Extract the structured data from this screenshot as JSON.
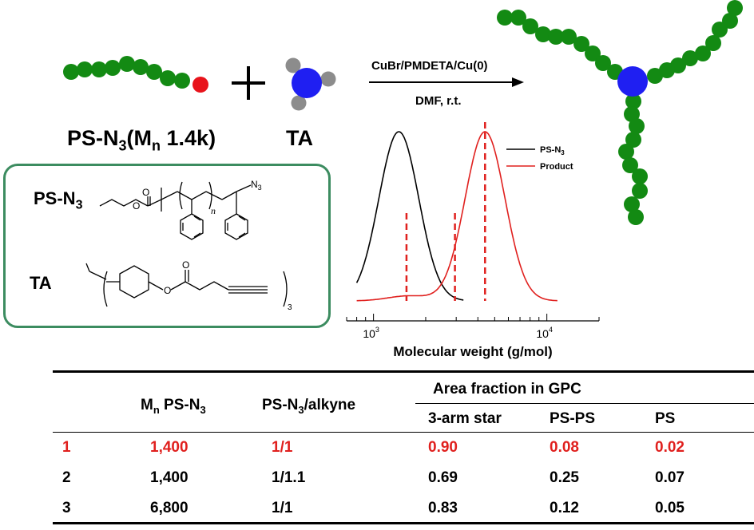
{
  "reaction": {
    "reagent1_label": "PS-N",
    "reagent1_sub": "3",
    "reagent1_mn_open": "(M",
    "reagent1_mn_sub": "n",
    "reagent1_mn_value": " 1.4k)",
    "plus": "+",
    "reagent2_label": "TA",
    "conditions_top": "CuBr/PMDETA/Cu(0)",
    "conditions_bottom": "DMF, r.t."
  },
  "structures": {
    "ps_label": "PS-N",
    "ps_sub": "3",
    "ps_n": "n",
    "ps_n3": "N",
    "ps_n3_sub": "3",
    "ps_o": "O",
    "ps_o2": "O",
    "ta_label": "TA",
    "ta_o": "O",
    "ta_o2": "O",
    "ta_sub": "3"
  },
  "colors": {
    "bead_green": "#138a13",
    "end_red": "#e8131b",
    "core_blue": "#1f1ff2",
    "arm_gray": "#8c8c8c",
    "box_border": "#3c8c60",
    "product_curve": "#e0201e",
    "highlight_red": "#e0201e"
  },
  "chart_data": {
    "type": "line",
    "title": "",
    "xlabel": "Molecular weight (g/mol)",
    "ylabel": "",
    "x_scale": "log",
    "xlim": [
      700,
      20000
    ],
    "x_ticks": [
      1000,
      10000
    ],
    "x_tick_labels": [
      {
        "base": "10",
        "exp": "3"
      },
      {
        "base": "10",
        "exp": "4"
      }
    ],
    "series": [
      {
        "name": "PS-N3",
        "color": "#000000",
        "peak_mw": 1400,
        "height": 1.0
      },
      {
        "name": "Product",
        "color": "#e0201e",
        "peak_mw": 4400,
        "height": 1.0,
        "shoulder_mw": 1600,
        "shoulder_height": 0.03
      }
    ],
    "dashed_lines_mw": [
      1550,
      2950,
      4400
    ],
    "legend_entries": [
      {
        "label": "PS-N",
        "sub": "3",
        "color": "#000000"
      },
      {
        "label": "Product",
        "sub": "",
        "color": "#e0201e"
      }
    ],
    "legend_position": "top-right"
  },
  "table": {
    "header_mn": "M",
    "header_mn_sub": "n",
    "header_mn_rest": " PS-N",
    "header_mn_sub2": "3",
    "header_ratio": "PS-N",
    "header_ratio_sub": "3",
    "header_ratio_rest": "/alkyne",
    "header_group": "Area fraction in GPC",
    "sub_headers": [
      "3-arm star",
      "PS-PS",
      "PS"
    ],
    "rows": [
      {
        "id": "1",
        "mn": "1,400",
        "ratio": "1/1",
        "star": "0.90",
        "psps": "0.08",
        "ps": "0.02"
      },
      {
        "id": "2",
        "mn": "1,400",
        "ratio": "1/1.1",
        "star": "0.69",
        "psps": "0.25",
        "ps": "0.07"
      },
      {
        "id": "3",
        "mn": "6,800",
        "ratio": "1/1",
        "star": "0.83",
        "psps": "0.12",
        "ps": "0.05"
      }
    ]
  }
}
